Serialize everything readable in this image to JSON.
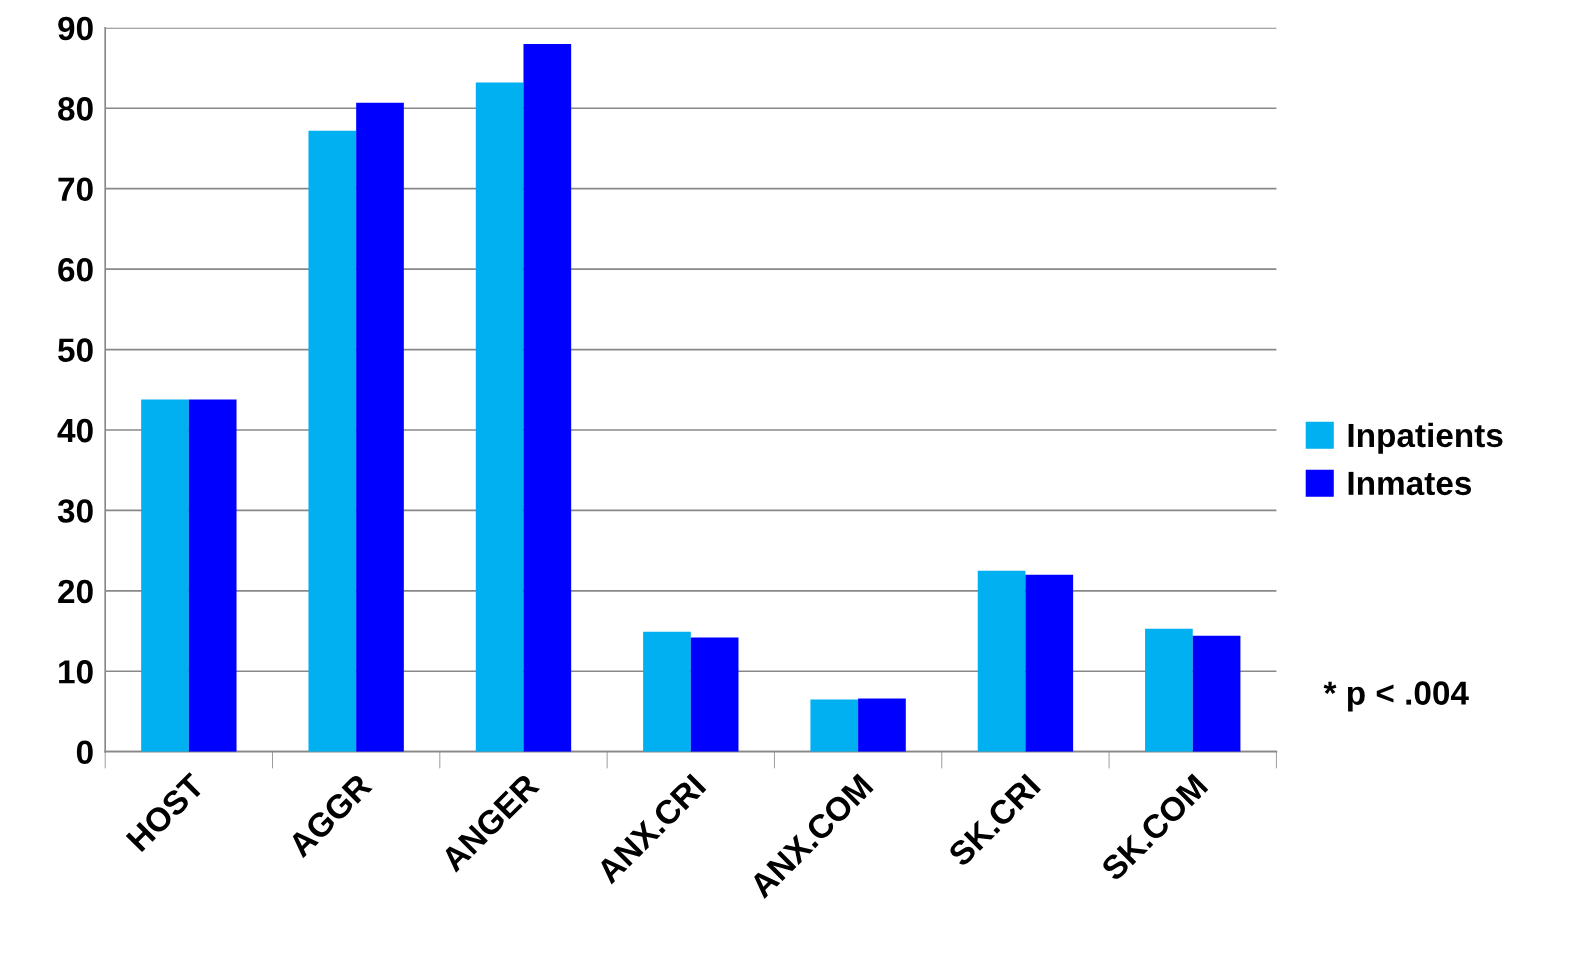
{
  "chart_data": {
    "type": "bar",
    "categories": [
      "HOST",
      "AGGR",
      "ANGER",
      "ANX.CRI",
      "ANX.COM",
      "SK.CRI",
      "SK.COM"
    ],
    "series": [
      {
        "name": "Inpatients",
        "color": "#00b0f0",
        "values": [
          43.8,
          77.2,
          83.2,
          14.9,
          6.5,
          22.5,
          15.3
        ]
      },
      {
        "name": "Inmates",
        "color": "#0000ff",
        "values": [
          43.8,
          80.7,
          88.0,
          14.2,
          6.6,
          22.0,
          14.4
        ]
      }
    ],
    "ylim": [
      0,
      90
    ],
    "yticks": [
      0,
      10,
      20,
      30,
      40,
      50,
      60,
      70,
      80,
      90
    ],
    "grid": "y",
    "legend": "right",
    "annotations": [
      "* p < .004"
    ]
  }
}
